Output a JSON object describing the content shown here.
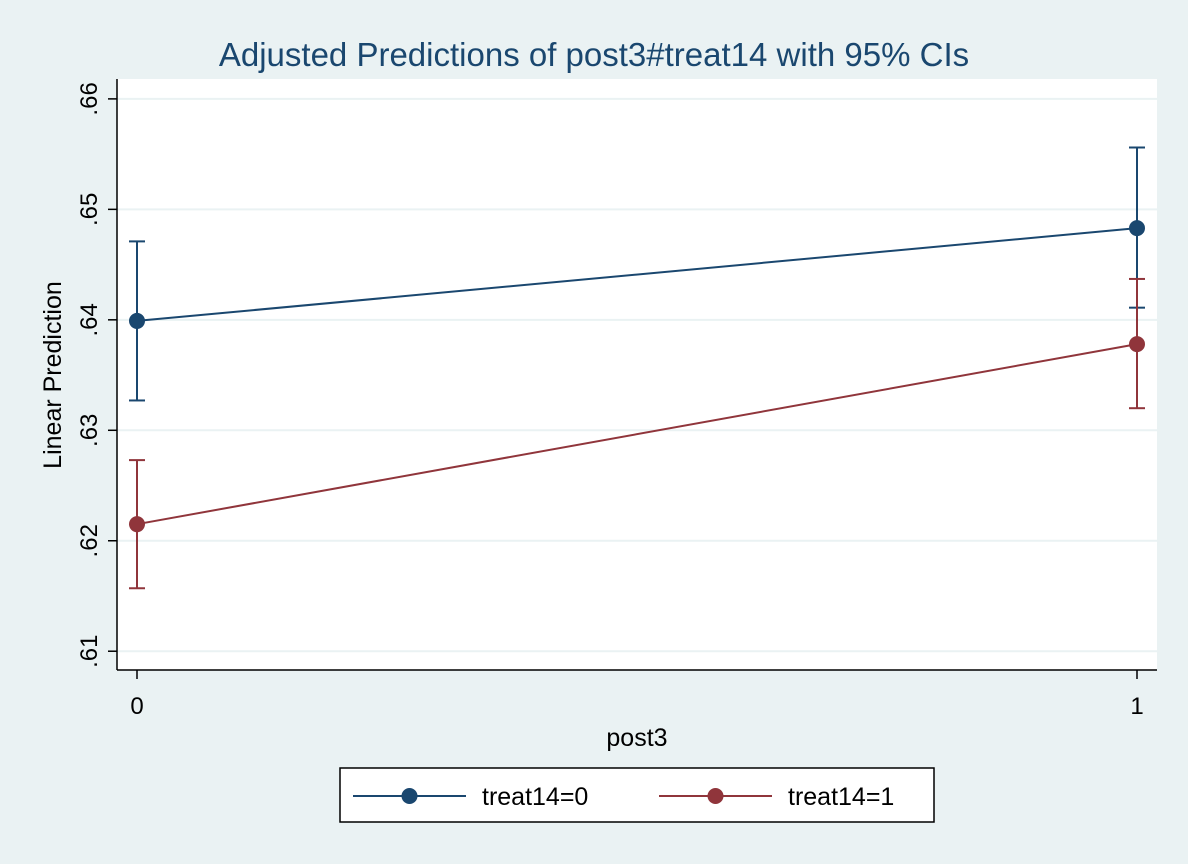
{
  "chart_data": {
    "type": "line",
    "title": "Adjusted Predictions of post3#treat14 with 95% CIs",
    "xlabel": "post3",
    "ylabel": "Linear Prediction",
    "x": [
      0,
      1
    ],
    "x_tick_labels": [
      "0",
      "1"
    ],
    "xlim": [
      -0.02,
      1.02
    ],
    "ylim": [
      0.6083,
      0.6618
    ],
    "y_ticks": [
      0.61,
      0.62,
      0.63,
      0.64,
      0.65,
      0.66
    ],
    "y_tick_labels": [
      ".61",
      ".62",
      ".63",
      ".64",
      ".65",
      ".66"
    ],
    "grid": true,
    "legend_position": "bottom",
    "series": [
      {
        "name": "treat14=0",
        "color": "#1a476f",
        "values": [
          0.6399,
          0.6483
        ],
        "ci_lower": [
          0.6327,
          0.6411
        ],
        "ci_upper": [
          0.6471,
          0.6556
        ]
      },
      {
        "name": "treat14=1",
        "color": "#90353b",
        "values": [
          0.6215,
          0.6378
        ],
        "ci_lower": [
          0.6157,
          0.632
        ],
        "ci_upper": [
          0.6273,
          0.6437
        ]
      }
    ]
  }
}
